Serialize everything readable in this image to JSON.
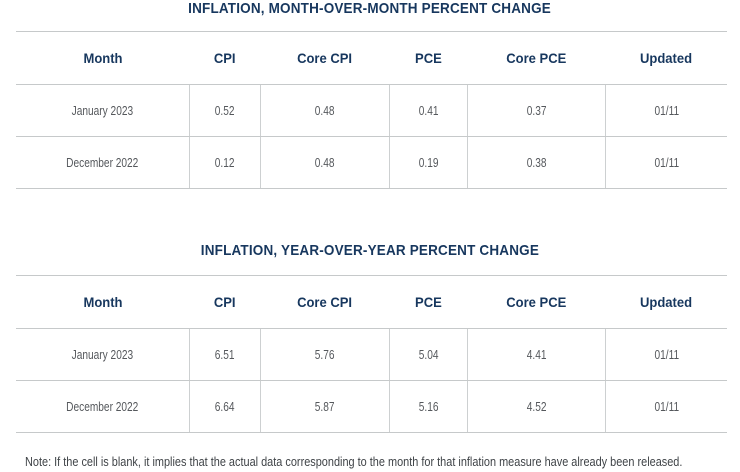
{
  "note": "Note: If the cell is blank, it implies that the actual data corresponding to the month for that inflation measure have already been released.",
  "colors": {
    "heading_navy": "#17375e",
    "cell_gray": "#55585c",
    "note_gray": "#3f4347",
    "grid_line": "#c6c9ca",
    "background": "#ffffff"
  },
  "chart_data": [
    {
      "type": "table",
      "title": "INFLATION, MONTH-OVER-MONTH PERCENT CHANGE",
      "columns": [
        "Month",
        "CPI",
        "Core CPI",
        "PCE",
        "Core PCE",
        "Updated"
      ],
      "rows": [
        [
          "January 2023",
          "0.52",
          "0.48",
          "0.41",
          "0.37",
          "01/11"
        ],
        [
          "December 2022",
          "0.12",
          "0.48",
          "0.19",
          "0.38",
          "01/11"
        ]
      ]
    },
    {
      "type": "table",
      "title": "INFLATION, YEAR-OVER-YEAR PERCENT CHANGE",
      "columns": [
        "Month",
        "CPI",
        "Core CPI",
        "PCE",
        "Core PCE",
        "Updated"
      ],
      "rows": [
        [
          "January 2023",
          "6.51",
          "5.76",
          "5.04",
          "4.41",
          "01/11"
        ],
        [
          "December 2022",
          "6.64",
          "5.87",
          "5.16",
          "4.52",
          "01/11"
        ]
      ]
    }
  ]
}
